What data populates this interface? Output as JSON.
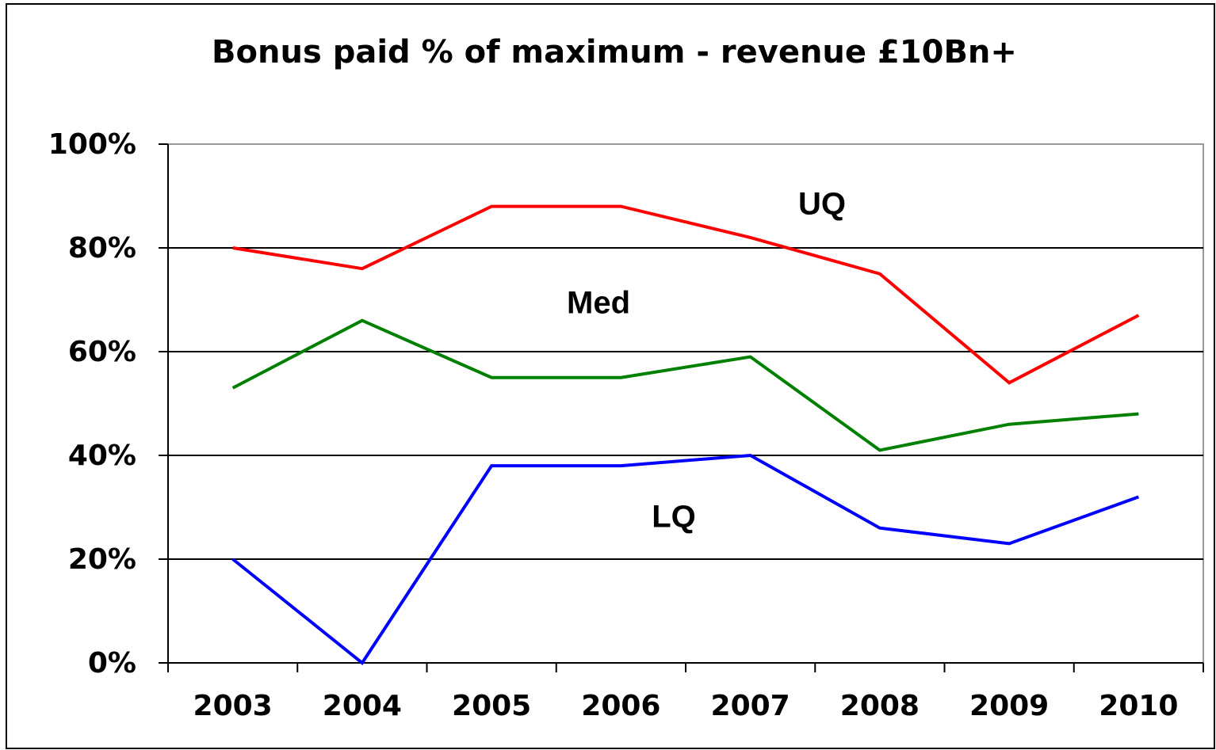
{
  "chart_data": {
    "type": "line",
    "title": "Bonus paid % of maximum - revenue £10Bn+",
    "categories": [
      "2003",
      "2004",
      "2005",
      "2006",
      "2007",
      "2008",
      "2009",
      "2010"
    ],
    "series": [
      {
        "name": "UQ",
        "color": "#ff0000",
        "values": [
          80,
          76,
          88,
          88,
          82,
          75,
          54,
          67
        ]
      },
      {
        "name": "Med",
        "color": "#008000",
        "values": [
          53,
          66,
          55,
          55,
          59,
          41,
          46,
          48
        ]
      },
      {
        "name": "LQ",
        "color": "#0000ff",
        "values": [
          20,
          0,
          38,
          38,
          40,
          26,
          23,
          32
        ]
      }
    ],
    "ylim": [
      0,
      100
    ],
    "yticks": [
      {
        "value": 0,
        "label": "0%"
      },
      {
        "value": 20,
        "label": "20%"
      },
      {
        "value": 40,
        "label": "40%"
      },
      {
        "value": 60,
        "label": "60%"
      },
      {
        "value": 80,
        "label": "80%"
      },
      {
        "value": 100,
        "label": "100%"
      }
    ],
    "grid": true
  }
}
